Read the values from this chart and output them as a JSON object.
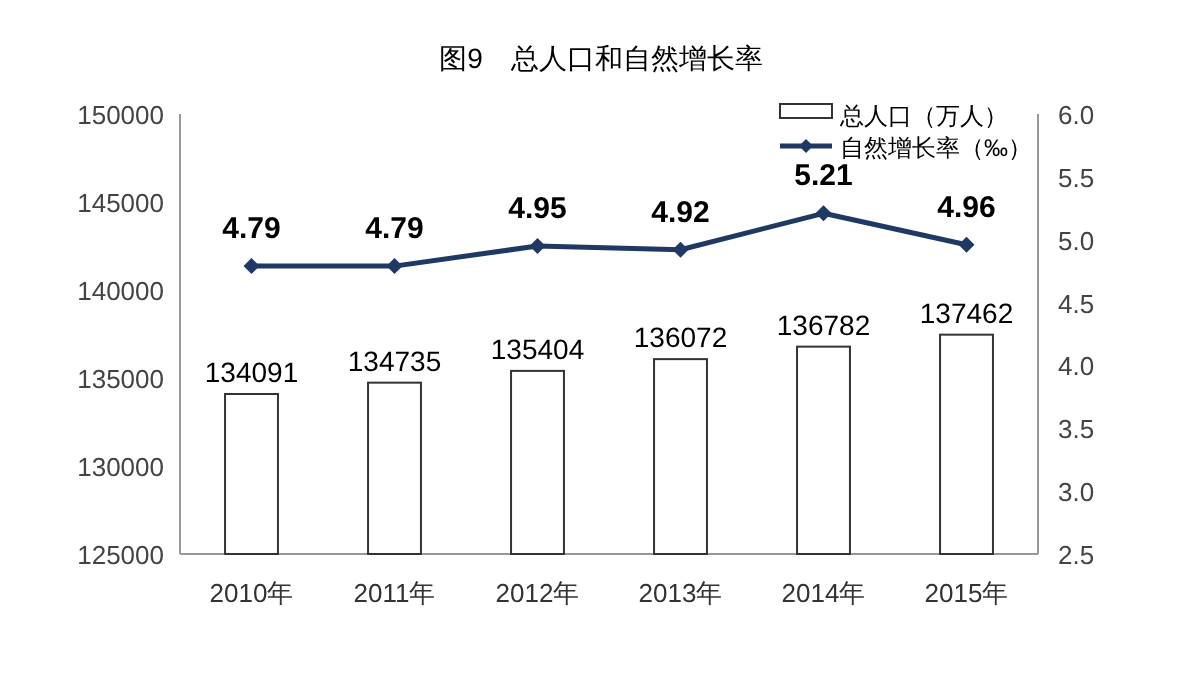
{
  "chart_data": {
    "type": "bar",
    "title": "图9　总人口和自然增长率",
    "categories": [
      "2010年",
      "2011年",
      "2012年",
      "2013年",
      "2014年",
      "2015年"
    ],
    "series": [
      {
        "name": "总人口（万人）",
        "color": "#ffffff",
        "values": [
          134091,
          134735,
          135404,
          136072,
          136782,
          137462
        ]
      },
      {
        "name": "自然增长率（‰）",
        "type": "line",
        "axis": "y2",
        "color": "#1f3864",
        "marker": "diamond",
        "values": [
          4.79,
          4.79,
          4.95,
          4.92,
          5.21,
          4.96
        ]
      }
    ],
    "ylim": [
      125000,
      150000
    ],
    "yticks": [
      125000,
      130000,
      135000,
      140000,
      145000,
      150000
    ],
    "y2lim": [
      2.5,
      6.0
    ],
    "y2ticks": [
      {
        "value": 2.5,
        "label": "2.5"
      },
      {
        "value": 3,
        "label": "3.0"
      },
      {
        "value": 3.5,
        "label": "3.5"
      },
      {
        "value": 4,
        "label": "4.0"
      },
      {
        "value": 4.5,
        "label": "4.5"
      },
      {
        "value": 5,
        "label": "5.0"
      },
      {
        "value": 5.5,
        "label": "5.5"
      },
      {
        "value": 6,
        "label": "6.0"
      }
    ],
    "data_labels": true,
    "grid": false,
    "legend": "top right"
  }
}
